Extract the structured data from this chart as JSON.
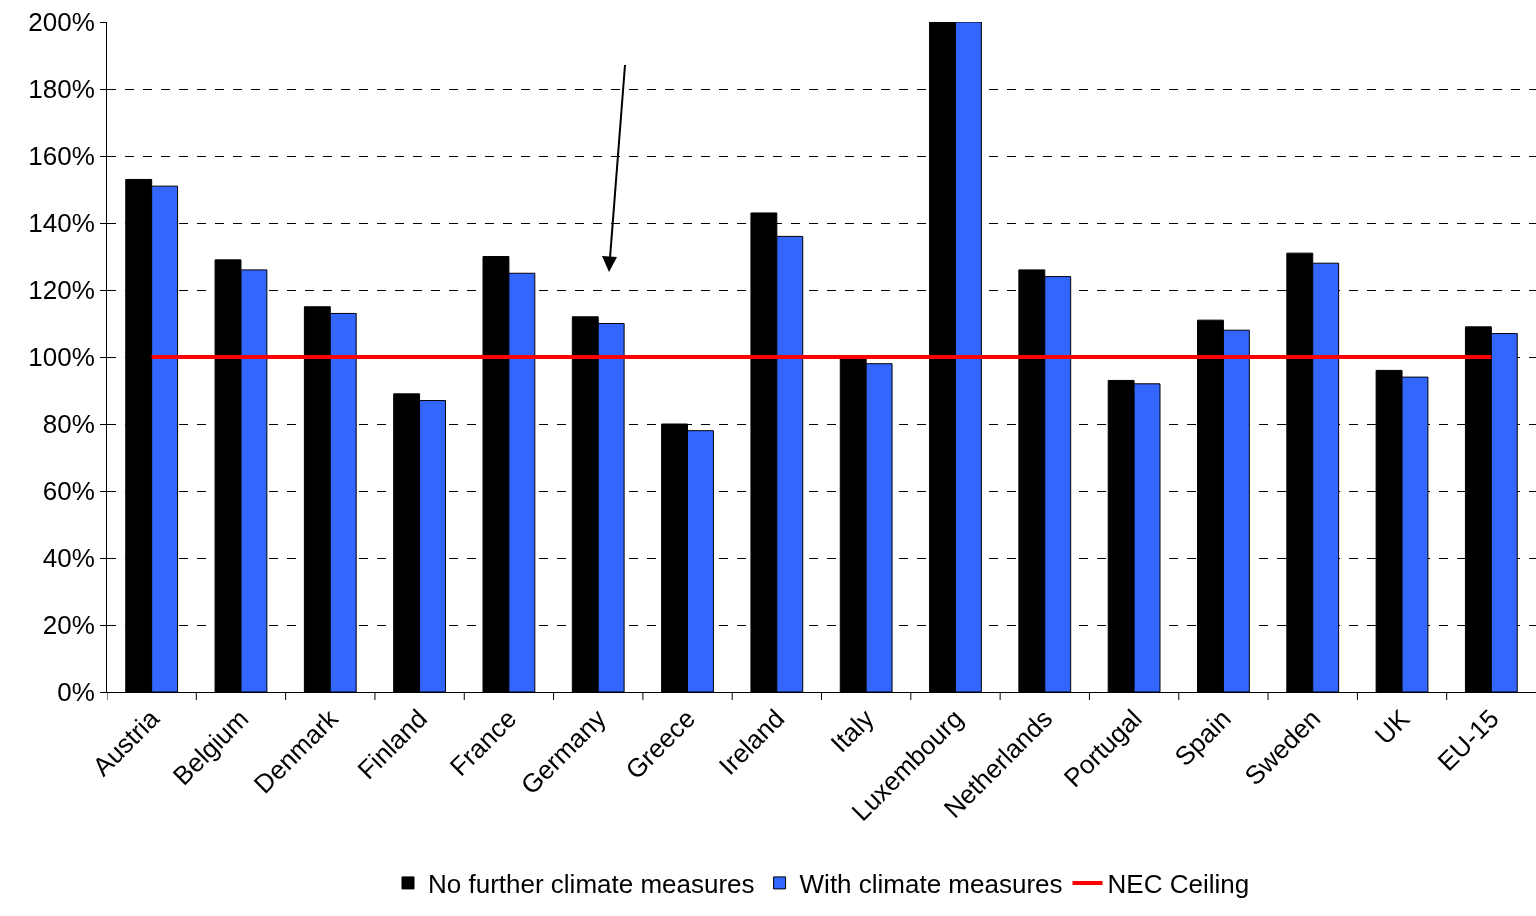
{
  "chart_data": {
    "type": "bar",
    "categories": [
      "Austria",
      "Belgium",
      "Denmark",
      "Finland",
      "France",
      "Germany",
      "Greece",
      "Ireland",
      "Italy",
      "Luxembourg",
      "Netherlands",
      "Portugal",
      "Spain",
      "Sweden",
      "UK",
      "EU-15"
    ],
    "series": [
      {
        "name": "No further climate measures",
        "color": "#000000",
        "values": [
          153,
          129,
          115,
          89,
          130,
          112,
          80,
          143,
          100,
          200,
          126,
          93,
          111,
          131,
          96,
          109
        ]
      },
      {
        "name": "With climate measures",
        "color": "#3366ff",
        "values": [
          151,
          126,
          113,
          87,
          125,
          110,
          78,
          136,
          98,
          200,
          124,
          92,
          108,
          128,
          94,
          107
        ]
      },
      {
        "name": "NEC Ceiling",
        "type": "line",
        "color": "#ff0000",
        "marker": "none",
        "values": [
          100,
          100,
          100,
          100,
          100,
          100,
          100,
          100,
          100,
          100,
          100,
          100,
          100,
          100,
          100,
          100
        ]
      }
    ],
    "ylim": [
      0,
      200
    ],
    "yticks": [
      {
        "value": 0,
        "label": "0%"
      },
      {
        "value": 20,
        "label": "20%"
      },
      {
        "value": 40,
        "label": "40%"
      },
      {
        "value": 60,
        "label": "60%"
      },
      {
        "value": 80,
        "label": "80%"
      },
      {
        "value": 100,
        "label": "100%"
      },
      {
        "value": 120,
        "label": "120%"
      },
      {
        "value": 140,
        "label": "140%"
      },
      {
        "value": 160,
        "label": "160%"
      },
      {
        "value": 180,
        "label": "180%"
      },
      {
        "value": 200,
        "label": "200%"
      }
    ],
    "grid": "y",
    "legend": "bottom"
  }
}
